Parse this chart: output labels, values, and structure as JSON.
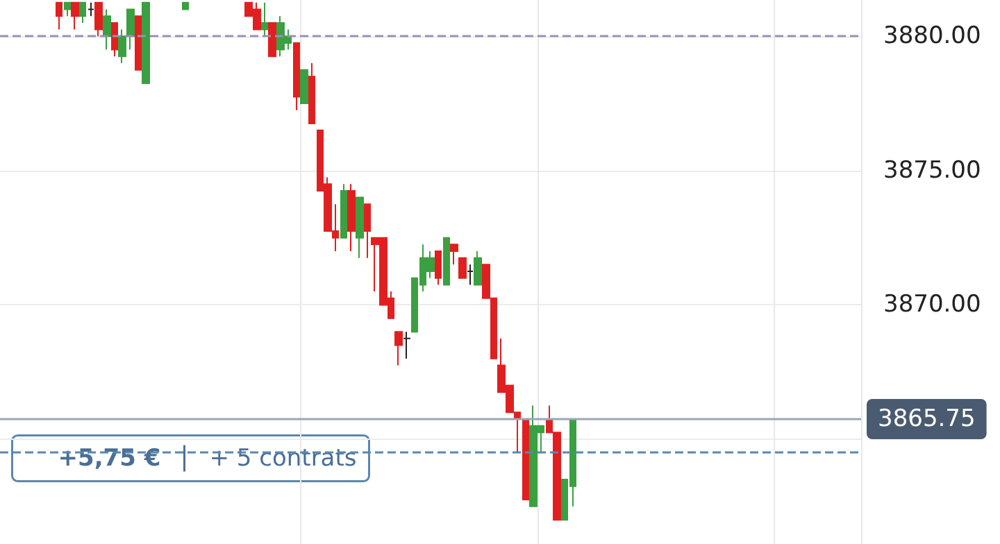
{
  "chart_data": {
    "type": "candlestick",
    "categories": [
      null,
      null,
      null,
      null,
      null,
      null,
      null,
      null,
      null,
      null,
      null,
      null,
      null,
      null,
      null,
      null,
      null,
      null,
      null,
      null,
      null,
      null,
      null,
      null,
      null,
      null,
      null,
      null,
      null,
      null,
      null,
      null,
      null,
      null,
      null,
      null,
      null,
      null,
      null,
      null,
      null,
      null,
      null,
      null,
      null,
      null,
      null,
      null,
      null,
      null,
      null,
      null,
      null,
      null,
      null,
      null,
      null,
      null,
      null,
      null,
      null,
      null,
      null,
      null,
      null,
      null,
      null,
      null,
      null,
      null,
      null,
      null,
      null,
      null,
      null,
      null,
      null,
      null,
      null,
      null,
      null,
      null,
      null,
      null,
      null,
      null,
      null,
      null,
      null,
      null,
      null,
      null,
      null,
      null,
      null,
      null,
      null,
      null,
      null,
      null,
      null,
      null,
      null,
      null,
      null,
      null,
      null,
      null,
      null
    ],
    "ohlc": [
      null,
      null,
      null,
      null,
      null,
      null,
      null,
      [
        3881.25,
        3881.25,
        3880.25,
        3880.75
      ],
      [
        3881,
        3881.25,
        3880.75,
        3881.25
      ],
      [
        3881.25,
        3881.25,
        3880.25,
        3880.75
      ],
      [
        3880.75,
        3881.25,
        3880.5,
        3881.25
      ],
      [
        3881,
        3881.25,
        3880.75,
        3881
      ],
      [
        3881.25,
        3881.25,
        3880,
        3880.25
      ],
      [
        3880,
        3881,
        3879.5,
        3880.75
      ],
      [
        3880.5,
        3880.5,
        3879.25,
        3879.5
      ],
      [
        3879.25,
        3880.25,
        3879,
        3880
      ],
      [
        3880,
        3881,
        3879.5,
        3881
      ],
      [
        3880.75,
        3880.75,
        3878.75,
        3878.75
      ],
      [
        3878.25,
        3881.25,
        3878.25,
        3881.25
      ],
      null,
      null,
      null,
      null,
      [
        3881,
        3881.25,
        3881,
        3881.25
      ],
      null,
      null,
      null,
      null,
      null,
      null,
      null,
      [
        3881.25,
        3881.25,
        3880.75,
        3880.75
      ],
      [
        3881,
        3881.25,
        3880.25,
        3880.25
      ],
      [
        3880.25,
        3881.25,
        3880,
        3880.5
      ],
      [
        3880.5,
        3880.5,
        3879.25,
        3879.25
      ],
      [
        3879.5,
        3880.75,
        3879.25,
        3880.5
      ],
      [
        3879.75,
        3880.25,
        3879.5,
        3880
      ],
      [
        3879.75,
        3879.75,
        3877.25,
        3877.75
      ],
      [
        3877.5,
        3878.75,
        3877.5,
        3878.75
      ],
      [
        3878.5,
        3879,
        3876.75,
        3876.75
      ],
      [
        3876.5,
        3876.5,
        3874.25,
        3874.25
      ],
      [
        3874.5,
        3874.75,
        3872.75,
        3872.75
      ],
      [
        3872.75,
        3873.75,
        3872,
        3872.5
      ],
      [
        3872.5,
        3874.5,
        3872.5,
        3874.25
      ],
      [
        3874.25,
        3874.5,
        3872,
        3872.75
      ],
      [
        3872.5,
        3874,
        3871.75,
        3874
      ],
      [
        3873.75,
        3873.75,
        3871.75,
        3872.75
      ],
      [
        3872.5,
        3872.5,
        3870.5,
        3872.25
      ],
      [
        3872.5,
        3872.5,
        3870,
        3870
      ],
      [
        3870.25,
        3870.5,
        3869.5,
        3869.5
      ],
      [
        3869,
        3869,
        3867.75,
        3868.5
      ],
      [
        3868.75,
        3869,
        3868,
        3868.75
      ],
      [
        3869,
        3871,
        3869,
        3871
      ],
      [
        3870.75,
        3872.25,
        3870.5,
        3871.75
      ],
      [
        3871.25,
        3872,
        3871,
        3871.75
      ],
      [
        3872,
        3872,
        3870.75,
        3871
      ],
      [
        3870.75,
        3872.5,
        3870.75,
        3872.5
      ],
      [
        3872.25,
        3872.25,
        3871.5,
        3872
      ],
      [
        3871.75,
        3871.75,
        3871,
        3871
      ],
      [
        3871.25,
        3871.5,
        3870.75,
        3871.25
      ],
      [
        3870.75,
        3872,
        3870.75,
        3871.75
      ],
      [
        3871.5,
        3871.5,
        3870.25,
        3870.25
      ],
      [
        3870.25,
        3870.25,
        3868,
        3868
      ],
      [
        3867.75,
        3868.75,
        3866.75,
        3866.75
      ],
      [
        3867,
        3867,
        3866,
        3866
      ],
      [
        3866,
        3866,
        3864.5,
        3865.75
      ],
      [
        3865.75,
        3865.75,
        3862.75,
        3862.75
      ],
      [
        3862.5,
        3866.25,
        3862.5,
        3865.5
      ],
      [
        3865.25,
        3865.5,
        3864.5,
        3865.5
      ],
      [
        3865.75,
        3866.25,
        3865.25,
        3865.25
      ],
      [
        3865.25,
        3865.25,
        3862,
        3862
      ],
      [
        3862,
        3863.5,
        3862,
        3863.5
      ],
      [
        3863.25,
        3865.75,
        3862.5,
        3865.75
      ],
      null,
      null,
      null,
      null,
      null,
      null,
      null,
      null,
      null,
      null,
      null,
      null,
      null,
      null,
      null,
      null,
      null,
      null,
      null,
      null,
      null,
      null,
      null,
      null,
      null,
      null,
      null,
      null,
      null,
      null,
      null,
      null,
      null,
      null,
      null,
      null
    ],
    "colors": [
      null,
      null,
      null,
      null,
      null,
      null,
      null,
      "#e02020",
      "#3aa041",
      "#e02020",
      "#3aa041",
      "#222222",
      "#e02020",
      "#3aa041",
      "#e02020",
      "#3aa041",
      "#3aa041",
      "#e02020",
      "#3aa041",
      null,
      null,
      null,
      null,
      "#3aa041",
      null,
      null,
      null,
      null,
      null,
      null,
      null,
      "#e02020",
      "#e02020",
      "#3aa041",
      "#e02020",
      "#3aa041",
      "#3aa041",
      "#e02020",
      "#3aa041",
      "#e02020",
      "#e02020",
      "#e02020",
      "#e02020",
      "#3aa041",
      "#e02020",
      "#3aa041",
      "#e02020",
      "#e02020",
      "#e02020",
      "#e02020",
      "#e02020",
      "#222222",
      "#3aa041",
      "#3aa041",
      "#3aa041",
      "#e02020",
      "#3aa041",
      "#e02020",
      "#e02020",
      "#222222",
      "#3aa041",
      "#e02020",
      "#e02020",
      "#e02020",
      "#e02020",
      "#e02020",
      "#e02020",
      "#3aa041",
      "#3aa041",
      "#e02020",
      "#e02020",
      "#3aa041",
      "#3aa041",
      null,
      null,
      null,
      null,
      null,
      null,
      null,
      null,
      null,
      null,
      null,
      null,
      null,
      null,
      null,
      null,
      null,
      null,
      null,
      null,
      null,
      null,
      null,
      null,
      null,
      null,
      null,
      null,
      null,
      null,
      null,
      null,
      null,
      null,
      null,
      null
    ],
    "ylim": [
      3861.1,
      3881.35
    ],
    "yticks": [
      {
        "value": 3865,
        "label": null
      },
      {
        "value": 3870,
        "label": "3870.00"
      },
      {
        "value": 3875,
        "label": "3875.00"
      },
      {
        "value": 3880,
        "label": "3880.00"
      }
    ],
    "tick_labels": "y",
    "grid": true,
    "ref_lines": [
      {
        "axis": "y",
        "value": 3880,
        "label": null,
        "color": "#9b8fb5",
        "line_style": "dashed"
      },
      {
        "axis": "y",
        "value": 3865.75,
        "label": "3865.75",
        "color": "#9aa6b8",
        "line_style": "solid"
      },
      {
        "axis": "y",
        "value": 3864.5,
        "label": null,
        "color": "#5b87b0",
        "line_style": "dashed"
      }
    ],
    "annotations": [
      "+5,75 €",
      "+ 5 contrats"
    ]
  }
}
